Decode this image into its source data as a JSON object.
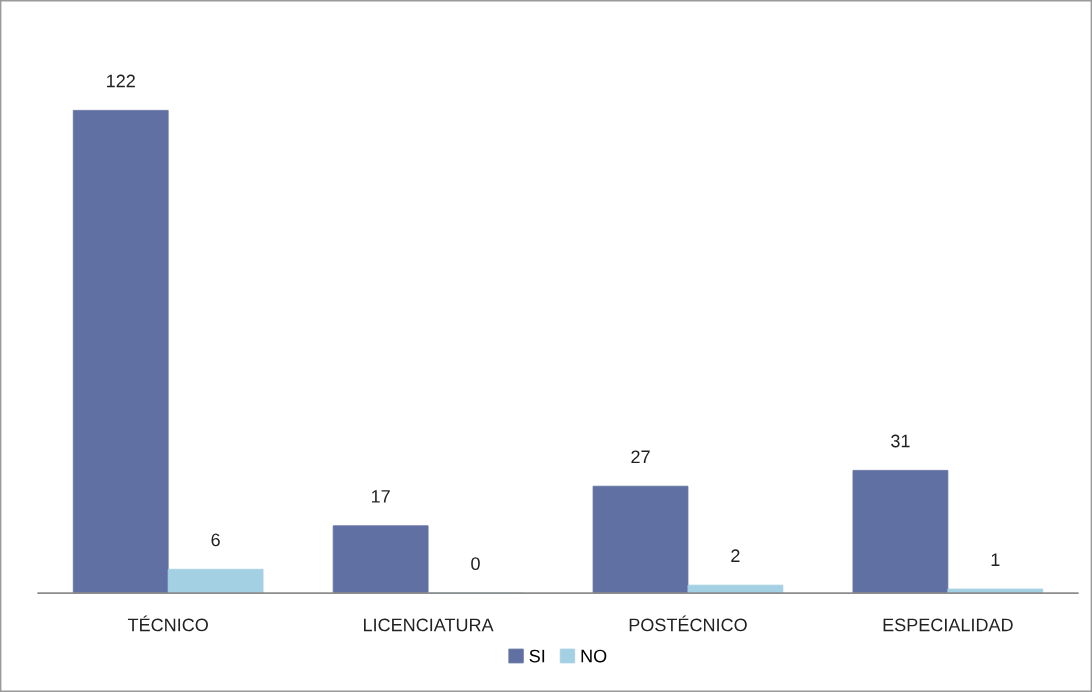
{
  "chart_data": {
    "type": "bar",
    "categories": [
      "TÉCNICO",
      "LICENCIATURA",
      "POSTÉCNICO",
      "ESPECIALIDAD"
    ],
    "series": [
      {
        "name": "SI",
        "color": "#6170a2",
        "values": [
          122,
          17,
          27,
          31
        ]
      },
      {
        "name": "NO",
        "color": "#a3d0e3",
        "values": [
          6,
          0,
          2,
          1
        ]
      }
    ],
    "data_labels": true,
    "legend": "bottom",
    "tick_labels": "x"
  }
}
